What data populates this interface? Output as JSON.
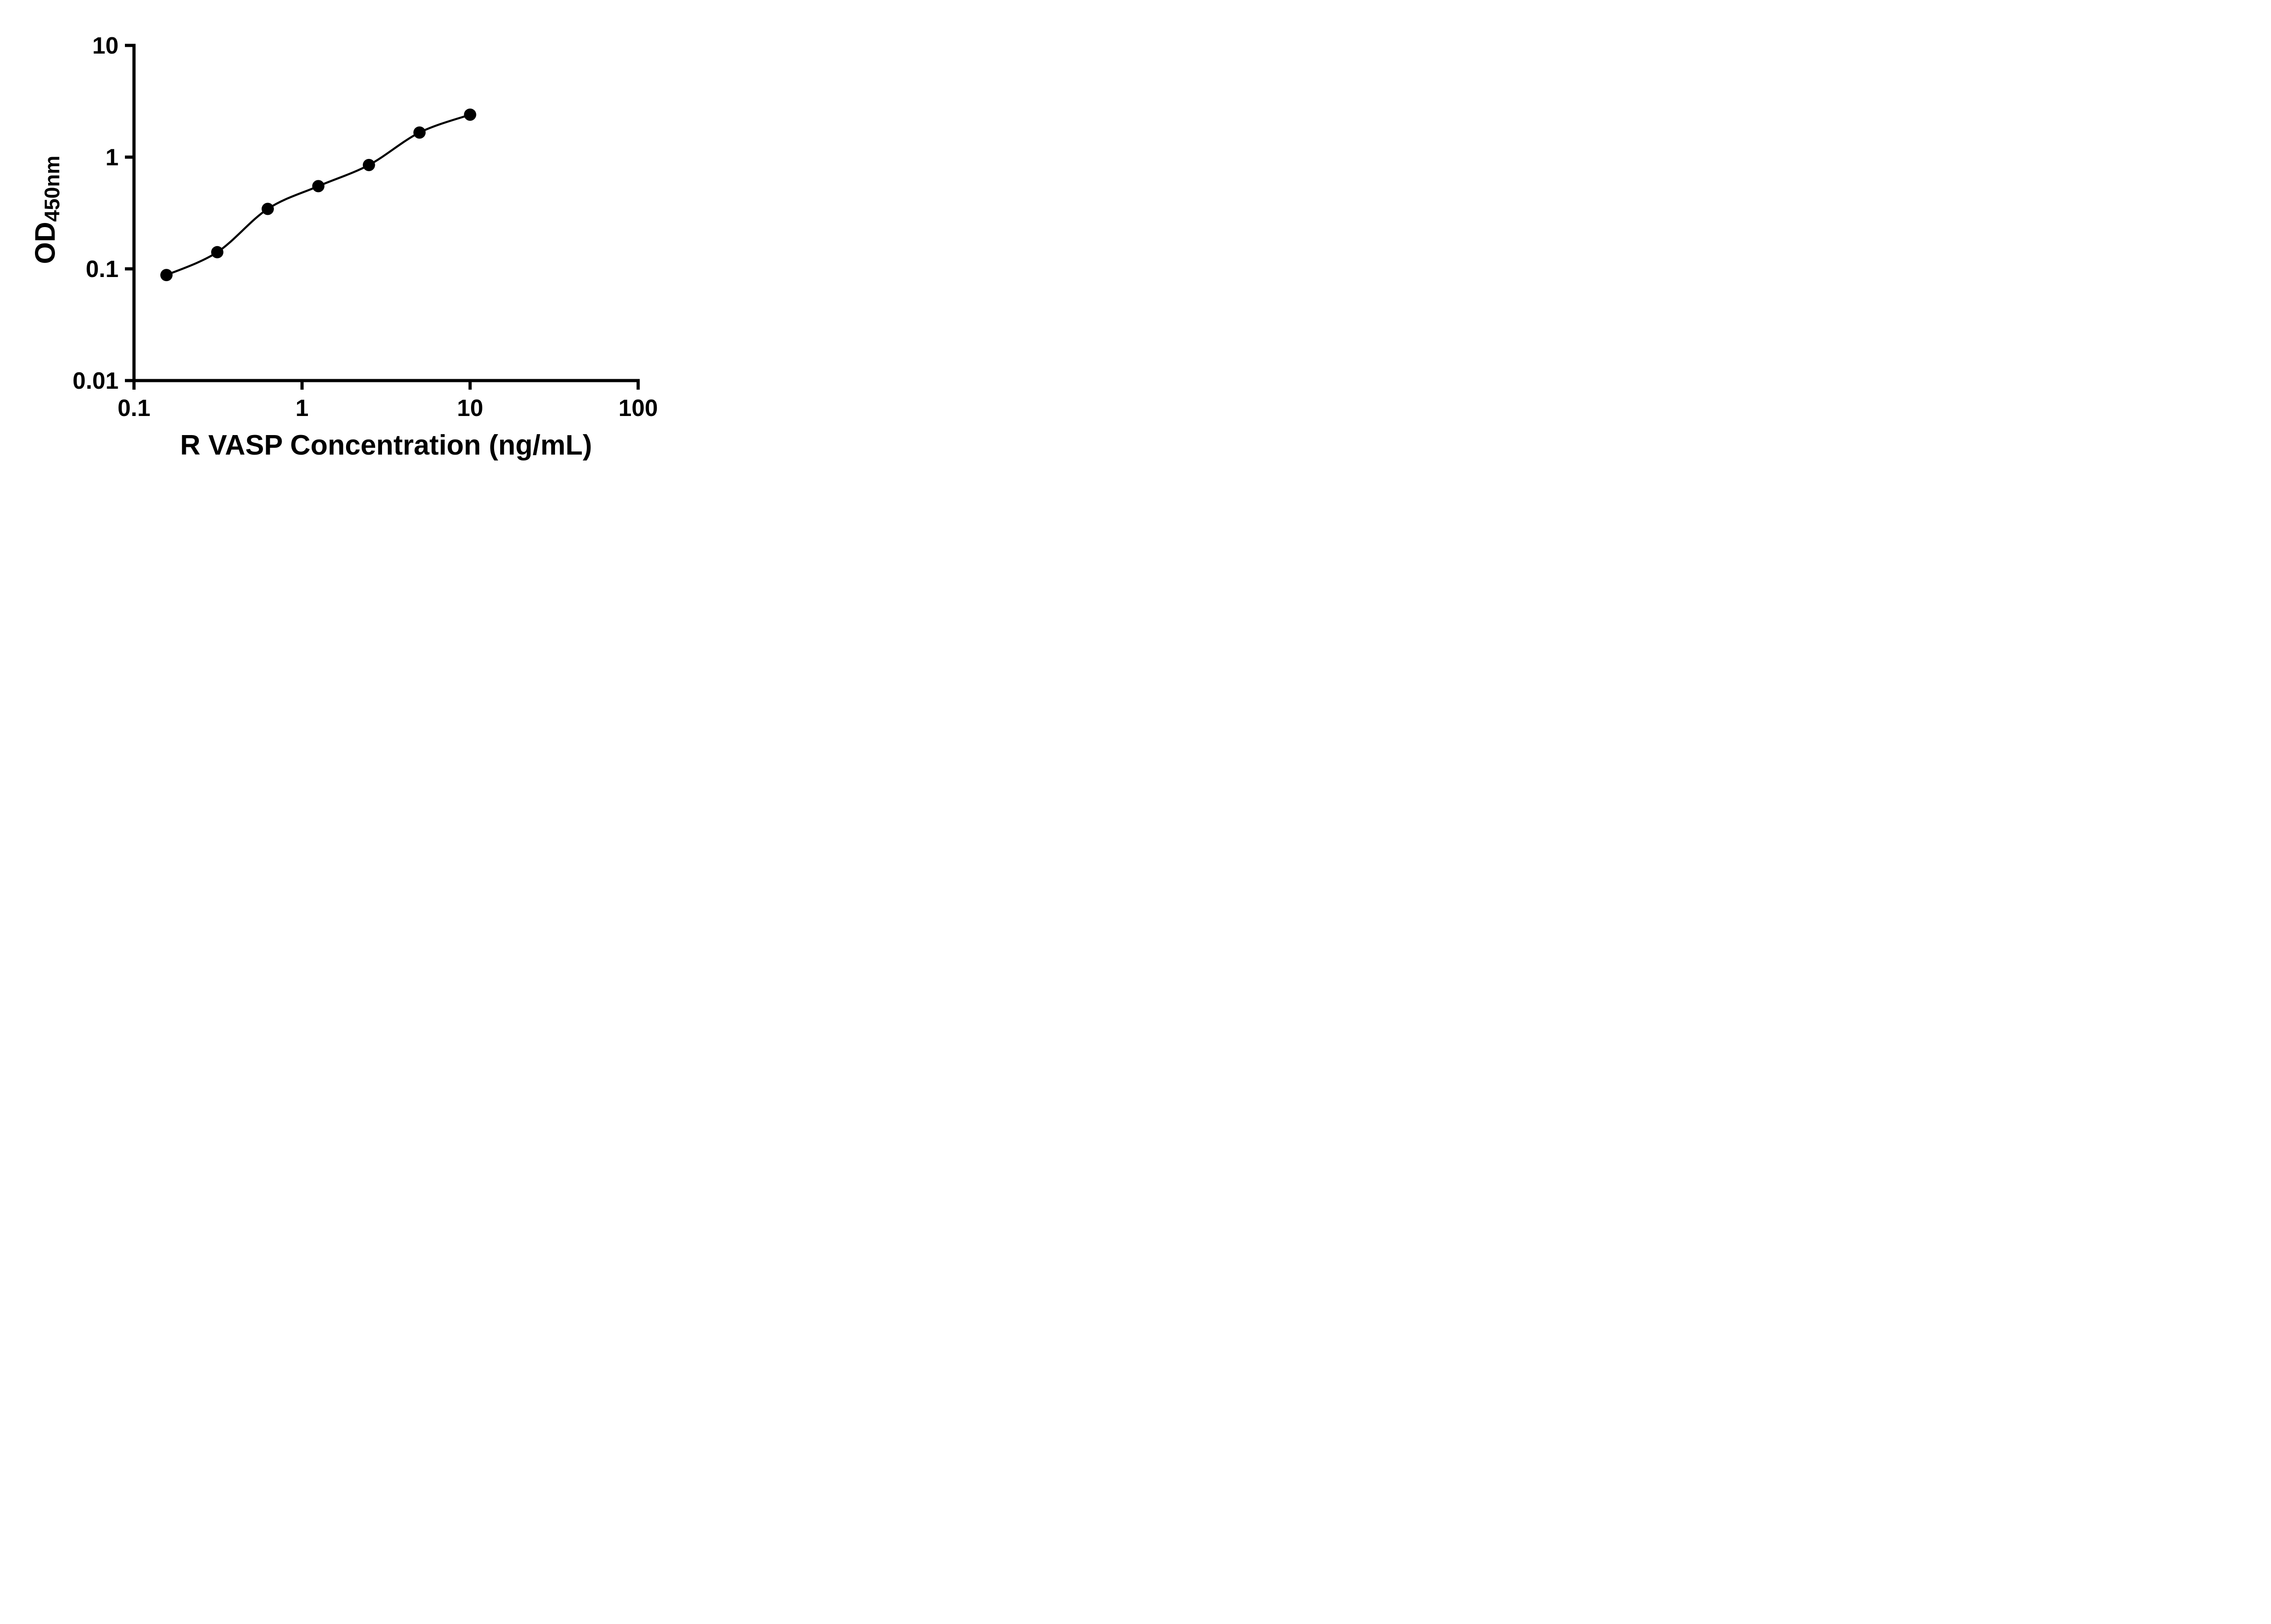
{
  "chart_data": {
    "type": "scatter",
    "title": "",
    "xlabel": "R VASP Concentration (ng/mL)",
    "ylabel": "OD450nm",
    "ylabel_main": "OD",
    "ylabel_sub": "450nm",
    "xscale": "log",
    "yscale": "log",
    "xlim": [
      0.1,
      100
    ],
    "ylim": [
      0.01,
      10
    ],
    "x_ticks": [
      "0.1",
      "1",
      "10",
      "100"
    ],
    "y_ticks": [
      "0.01",
      "0.1",
      "1",
      "10"
    ],
    "grid": false,
    "legend": false,
    "marker": "filled-circle",
    "marker_color": "#000000",
    "line_color": "#000000",
    "background_color": "#ffffff",
    "curve": "smooth-fit-through-points",
    "x": [
      0.156,
      0.313,
      0.625,
      1.25,
      2.5,
      5,
      10
    ],
    "y": [
      0.088,
      0.141,
      0.344,
      0.55,
      0.85,
      1.66,
      2.4
    ]
  }
}
